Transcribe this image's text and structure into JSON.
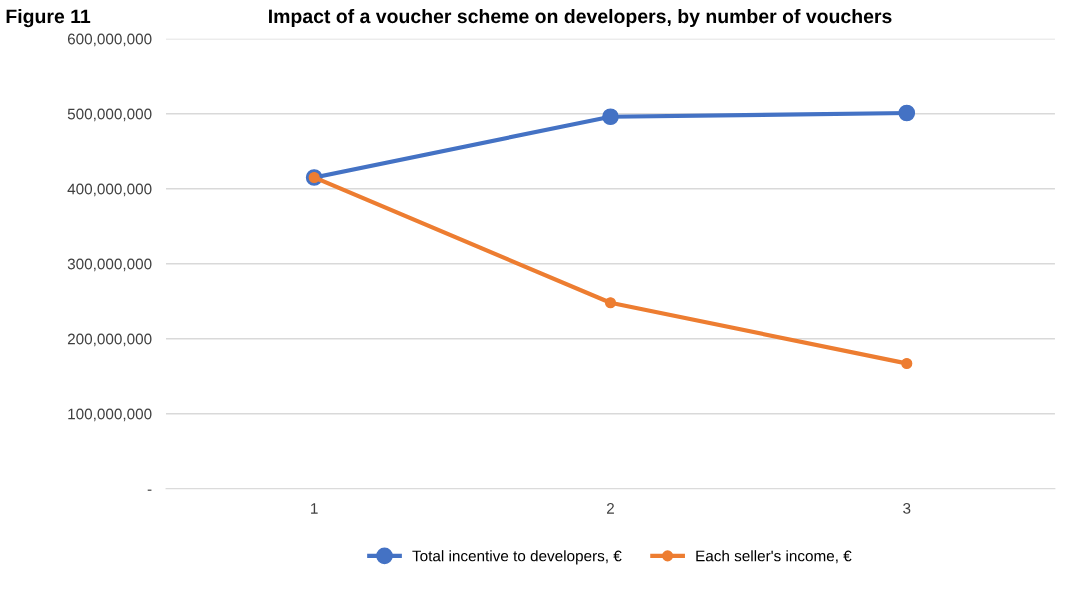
{
  "chart_data": {
    "type": "line",
    "title": "Figure 11",
    "subtitle": "Impact of a voucher scheme on developers, by number of vouchers",
    "categories": [
      "1",
      "2",
      "3"
    ],
    "series": [
      {
        "name": "Total incentive to developers, €",
        "color": "#4472c4",
        "values": [
          415000000,
          496000000,
          501000000
        ]
      },
      {
        "name": "Each seller's income, €",
        "color": "#ed7d31",
        "values": [
          415000000,
          248000000,
          167000000
        ]
      }
    ],
    "ylim": [
      0,
      600000000
    ],
    "yticks": [
      {
        "value": 0,
        "label": "-"
      },
      {
        "value": 100000000,
        "label": "100,000,000"
      },
      {
        "value": 200000000,
        "label": "200,000,000"
      },
      {
        "value": 300000000,
        "label": "300,000,000"
      },
      {
        "value": 400000000,
        "label": "400,000,000"
      },
      {
        "value": 500000000,
        "label": "500,000,000"
      },
      {
        "value": 600000000,
        "label": "600,000,000"
      }
    ],
    "grid": "y",
    "legend": "bottom",
    "marker": "circle",
    "line_style": "solid"
  }
}
